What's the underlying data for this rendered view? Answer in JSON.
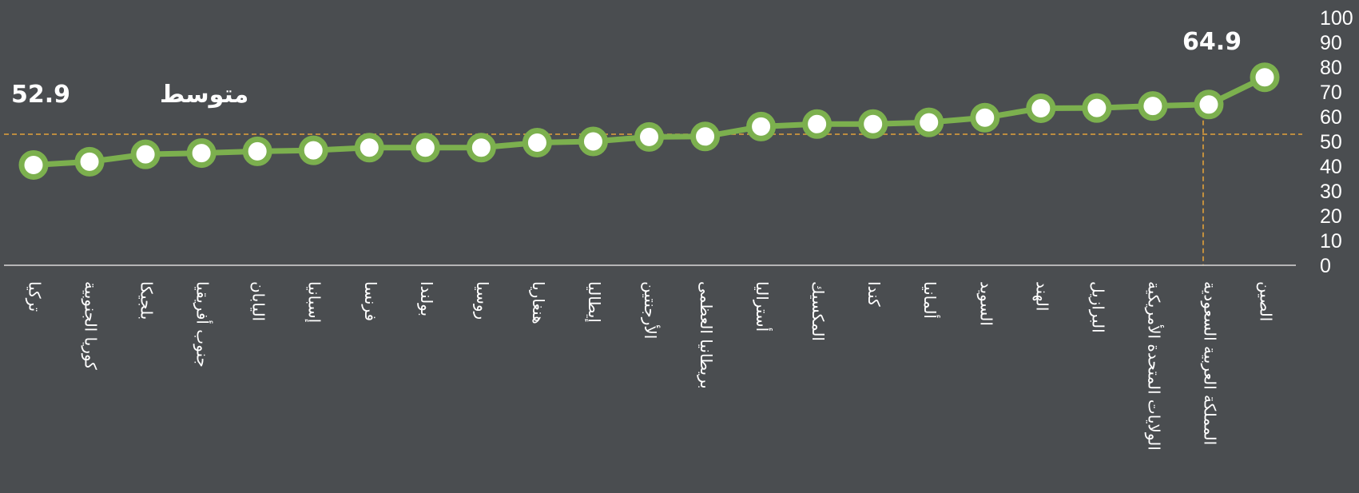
{
  "colors": {
    "background": "#4a4d50",
    "line": "#7cb04e",
    "marker_fill": "#ffffff",
    "average_line": "#e2a13a",
    "text": "#ffffff",
    "axis": "#d9d9d9"
  },
  "average": {
    "label": "متوسط",
    "value": 52.9,
    "value_text": "52.9"
  },
  "highlight": {
    "category": "المملكة العربية السعودية",
    "value_text": "64.9"
  },
  "chart_data": {
    "type": "line",
    "title": "",
    "xlabel": "",
    "ylabel": "",
    "ylim": [
      0,
      100
    ],
    "yticks": [
      0,
      10,
      20,
      30,
      40,
      50,
      60,
      70,
      80,
      90,
      100
    ],
    "y_axis_position": "right",
    "grid": false,
    "categories": [
      "تركيا",
      "كوريا الجنوبية",
      "بلجيكا",
      "جنوب أفريقيا",
      "اليابان",
      "إسبانيا",
      "فرنسا",
      "بولندا",
      "روسيا",
      "هنغاريا",
      "إيطاليا",
      "الأرجنتين",
      "بريطانيا العظمى",
      "أستراليا",
      "المكسيك",
      "كندا",
      "ألمانيا",
      "السويد",
      "الهند",
      "البرازيل",
      "الولايات المتحدة الأمريكية",
      "المملكة العربية السعودية",
      "الصين"
    ],
    "series": [
      {
        "values": [
          40.5,
          41.8,
          44.8,
          45.3,
          46.0,
          46.4,
          47.5,
          47.5,
          47.5,
          49.5,
          50.0,
          51.8,
          52.0,
          56.0,
          57.0,
          57.0,
          57.7,
          59.6,
          63.4,
          63.5,
          64.3,
          64.9,
          75.9
        ]
      }
    ],
    "reference_lines": [
      {
        "axis": "y",
        "value": 52.9
      },
      {
        "axis": "x",
        "category": "المملكة العربية السعودية"
      }
    ]
  }
}
